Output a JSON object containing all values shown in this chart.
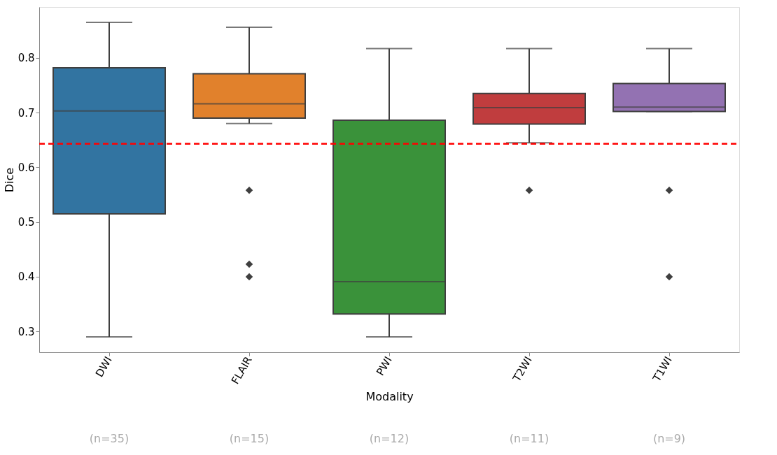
{
  "chart_data": {
    "type": "box",
    "xlabel": "Modality",
    "ylabel": "Dice",
    "categories": [
      "DWI",
      "FLAIR",
      "PWI",
      "T2WI",
      "T1WI"
    ],
    "colors": [
      "#3274a1",
      "#e1812c",
      "#3a923a",
      "#c03d3e",
      "#9372b2"
    ],
    "boxes": [
      {
        "low": 0.29,
        "q1": 0.515,
        "median": 0.703,
        "q3": 0.782,
        "high": 0.865
      },
      {
        "low": 0.68,
        "q1": 0.69,
        "median": 0.716,
        "q3": 0.771,
        "high": 0.856,
        "outliers": [
          0.558,
          0.423,
          0.4
        ]
      },
      {
        "low": 0.29,
        "q1": 0.332,
        "median": 0.391,
        "q3": 0.686,
        "high": 0.817
      },
      {
        "low": 0.645,
        "q1": 0.679,
        "median": 0.709,
        "q3": 0.735,
        "high": 0.817,
        "outliers": [
          0.558
        ]
      },
      {
        "low": 0.702,
        "q1": 0.702,
        "median": 0.71,
        "q3": 0.753,
        "high": 0.817,
        "outliers": [
          0.558,
          0.4
        ]
      }
    ],
    "ylim": [
      0.262,
      0.893
    ],
    "yticks": [
      0.3,
      0.4,
      0.5,
      0.6,
      0.7,
      0.8
    ],
    "ref_lines": [
      {
        "axis": "y",
        "value": 0.643,
        "color": "#ff0000",
        "line_style": "dashed"
      }
    ],
    "annotations": [
      "(n=35)",
      "(n=15)",
      "(n=12)",
      "(n=11)",
      "(n=9)"
    ],
    "marker": "diamond",
    "grid": false,
    "legend": false
  }
}
